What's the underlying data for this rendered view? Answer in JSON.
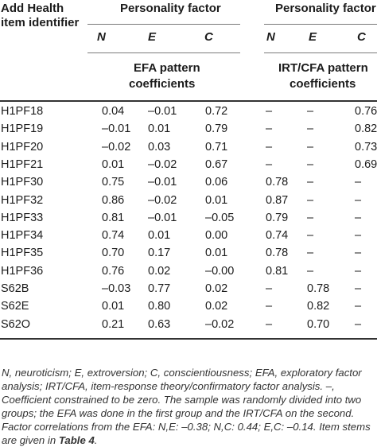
{
  "header": {
    "item_id_line1": "Add Health",
    "item_id_line2": "item identifier",
    "group1_title": "Personality factor",
    "group2_title": "Personality factor",
    "factor_cols": [
      "N",
      "E",
      "C",
      "N",
      "E",
      "C"
    ],
    "efa_line1": "EFA pattern",
    "efa_line2": "coefficients",
    "irt_line1": "IRT/CFA pattern",
    "irt_line2": "coefficients"
  },
  "rows": [
    {
      "id": "H1PF18",
      "v": [
        "0.04",
        "–0.01",
        "0.72",
        "–",
        "–",
        "0.76"
      ]
    },
    {
      "id": "H1PF19",
      "v": [
        "–0.01",
        "0.01",
        "0.79",
        "–",
        "–",
        "0.82"
      ]
    },
    {
      "id": "H1PF20",
      "v": [
        "–0.02",
        "0.03",
        "0.71",
        "–",
        "–",
        "0.73"
      ]
    },
    {
      "id": "H1PF21",
      "v": [
        "0.01",
        "–0.02",
        "0.67",
        "–",
        "–",
        "0.69"
      ]
    },
    {
      "id": "H1PF30",
      "v": [
        "0.75",
        "–0.01",
        "0.06",
        "0.78",
        "–",
        "–"
      ]
    },
    {
      "id": "H1PF32",
      "v": [
        "0.86",
        "–0.02",
        "0.01",
        "0.87",
        "–",
        "–"
      ]
    },
    {
      "id": "H1PF33",
      "v": [
        "0.81",
        "–0.01",
        "–0.05",
        "0.79",
        "–",
        "–"
      ]
    },
    {
      "id": "H1PF34",
      "v": [
        "0.74",
        "0.01",
        "0.00",
        "0.74",
        "–",
        "–"
      ]
    },
    {
      "id": "H1PF35",
      "v": [
        "0.70",
        "0.17",
        "0.01",
        "0.78",
        "–",
        "–"
      ]
    },
    {
      "id": "H1PF36",
      "v": [
        "0.76",
        "0.02",
        "–0.00",
        "0.81",
        "–",
        "–"
      ]
    },
    {
      "id": "S62B",
      "v": [
        "–0.03",
        "0.77",
        "0.02",
        "–",
        "0.78",
        "–"
      ]
    },
    {
      "id": "S62E",
      "v": [
        "0.01",
        "0.80",
        "0.02",
        "–",
        "0.82",
        "–"
      ]
    },
    {
      "id": "S62O",
      "v": [
        "0.21",
        "0.63",
        "–0.02",
        "–",
        "0.70",
        "–"
      ]
    }
  ],
  "footnote": {
    "line1": "N, neuroticism; E, extroversion; C, conscientiousness; EFA, exploratory factor",
    "line2": "analysis; IRT/CFA, item-response theory/confirmatory factor analysis. –,",
    "line3": "Coefficient constrained to be zero. The sample was randomly divided into two",
    "line4": "groups; the EFA was done in the first group and the IRT/CFA on the second.",
    "line5": "Factor correlations from the EFA: N,E: –0.38; N,C: 0.44; E,C: –0.14. Item stems",
    "line6_prefix": "are given in ",
    "line6_ref": "Table 4",
    "line6_suffix": "."
  }
}
